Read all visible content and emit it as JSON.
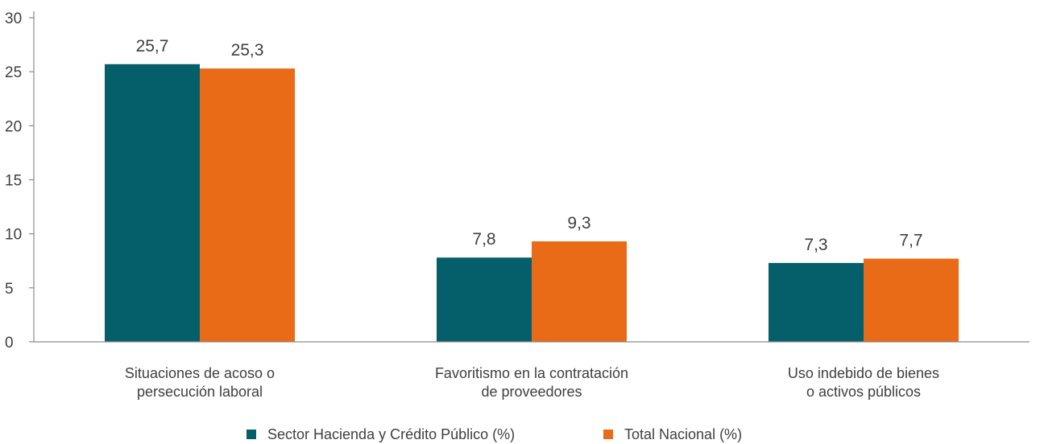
{
  "chart_data": {
    "type": "bar",
    "title": "",
    "xlabel": "",
    "ylabel": "",
    "ylim": [
      0,
      30
    ],
    "yticks": [
      "0",
      "5",
      "10",
      "15",
      "20",
      "25",
      "30"
    ],
    "grid": false,
    "legend_position": "bottom",
    "categories": [
      [
        "Situaciones de acoso o",
        "persecución laboral"
      ],
      [
        "Favoritismo en la contratación",
        "de proveedores"
      ],
      [
        "Uso indebido de bienes",
        "o activos públicos"
      ]
    ],
    "series": [
      {
        "name": "Sector Hacienda y Crédito Público (%)",
        "color": "#055f6b",
        "values": [
          25.7,
          7.8,
          7.3
        ],
        "labels": [
          "25,7",
          "7,8",
          "7,3"
        ]
      },
      {
        "name": "Total Nacional (%)",
        "color": "#e96b17",
        "values": [
          25.3,
          9.3,
          7.7
        ],
        "labels": [
          "25,3",
          "9,3",
          "7,7"
        ]
      }
    ]
  }
}
